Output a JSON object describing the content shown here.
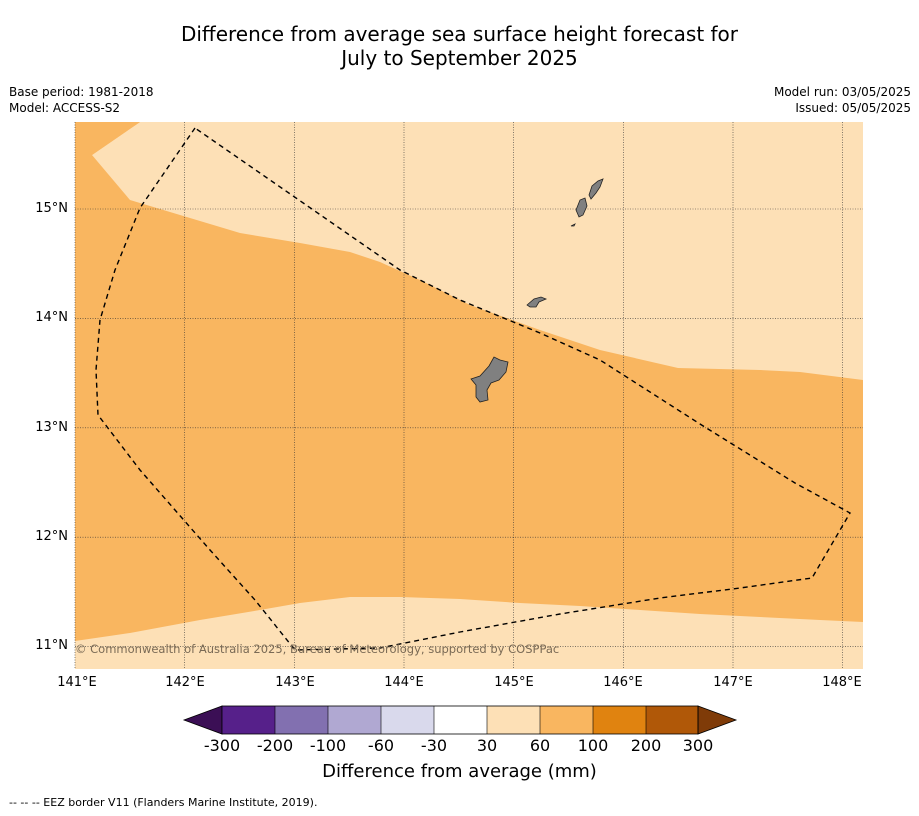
{
  "title_line1": "Difference from average sea surface height forecast for",
  "title_line2": "July to September 2025",
  "base_period": "Base period: 1981-2018",
  "model": "Model: ACCESS-S2",
  "model_run": "Model run: 03/05/2025",
  "issued": "Issued: 05/05/2025",
  "copyright": "© Commonwealth of Australia 2025, Bureau of Meteorology, supported by COSPPac",
  "longitude_ticks": [
    "141°E",
    "142°E",
    "143°E",
    "144°E",
    "145°E",
    "146°E",
    "147°E",
    "148°E"
  ],
  "latitude_ticks": [
    "15°N",
    "14°N",
    "13°N",
    "12°N",
    "11°N"
  ],
  "colorbar": {
    "title": "Difference from average (mm)",
    "labels": [
      "-300",
      "-200",
      "-100",
      "-60",
      "-30",
      "30",
      "60",
      "100",
      "200",
      "300"
    ],
    "colors": [
      "#3b0f55",
      "#56208a",
      "#8270b0",
      "#b0a8d2",
      "#d9d9ec",
      "#ffffff",
      "#fde0b6",
      "#f9b660",
      "#e08310",
      "#b05808",
      "#7f3b08"
    ]
  },
  "map": {
    "lon_range": [
      141.0,
      148.2
    ],
    "lat_range": [
      10.8,
      15.8
    ],
    "field_colors": {
      "band_30_60": "#fde0b6",
      "band_60_100": "#f9b660"
    },
    "land_color": "#808080"
  },
  "footnote": "--  --  -- EEZ border V11 (Flanders Marine Institute, 2019)."
}
